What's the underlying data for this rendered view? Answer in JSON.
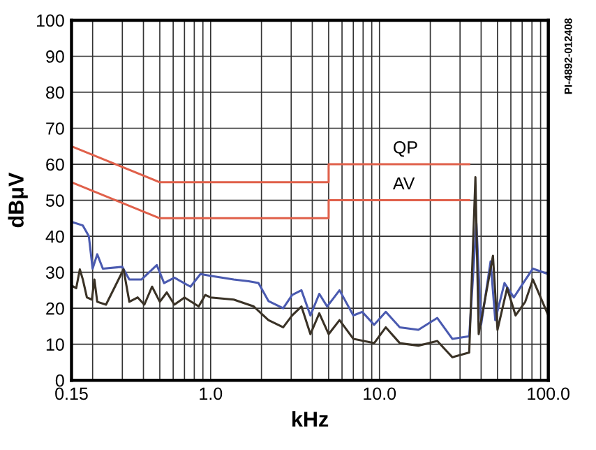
{
  "chart_data": {
    "type": "line",
    "xlabel": "kHz",
    "ylabel": "dBμV",
    "log": "x",
    "grid": true,
    "legend": false,
    "xlim": [
      0.15,
      100
    ],
    "xticks": [
      {
        "value": 0.15,
        "label": "0.15"
      },
      {
        "value": 1,
        "label": "1.0"
      },
      {
        "value": 10,
        "label": "10.0"
      },
      {
        "value": 100,
        "label": "100.0"
      }
    ],
    "ylim": [
      0,
      100
    ],
    "yticks": [
      0,
      10,
      20,
      30,
      40,
      50,
      60,
      70,
      80,
      90,
      100
    ],
    "annotations": [
      {
        "text": "QP",
        "x": 12,
        "y": 62
      },
      {
        "text": "AV",
        "x": 12,
        "y": 52
      },
      "PI-4892-012408"
    ],
    "series": [
      {
        "color": "#e0604a",
        "x": [
          0.15,
          0.5,
          5,
          5,
          34
        ],
        "values": [
          65,
          55,
          55,
          60,
          60
        ]
      },
      {
        "color": "#e0604a",
        "x": [
          0.15,
          0.5,
          5,
          5,
          34
        ],
        "values": [
          55,
          45,
          45,
          50,
          50
        ]
      },
      {
        "color": "#4a5ab0",
        "x": [
          0.15,
          0.175,
          0.19,
          0.2,
          0.213,
          0.23,
          0.3,
          0.33,
          0.39,
          0.48,
          0.53,
          0.61,
          0.76,
          0.87,
          1,
          1.37,
          1.68,
          1.92,
          2.2,
          2.69,
          3.04,
          3.45,
          3.9,
          4.4,
          4.9,
          5.8,
          7.0,
          7.9,
          9.3,
          10.9,
          13.2,
          17,
          22,
          27,
          34,
          37.5,
          40,
          45.5,
          48.5,
          55,
          62.5,
          71,
          81,
          100
        ],
        "values": [
          44,
          43,
          40,
          31,
          35,
          31,
          31.5,
          28,
          28,
          32,
          27,
          28.5,
          26,
          29.5,
          29,
          28,
          27.5,
          27,
          22,
          20,
          23.7,
          25,
          18,
          24,
          20.5,
          25,
          18,
          19,
          15.4,
          19,
          14.7,
          14,
          17.3,
          11.5,
          12.2,
          43.6,
          15.4,
          33,
          16.7,
          27,
          23,
          27,
          31,
          29.5
        ]
      },
      {
        "color": "#3a3226",
        "x": [
          0.15,
          0.16,
          0.168,
          0.175,
          0.185,
          0.198,
          0.205,
          0.213,
          0.24,
          0.305,
          0.33,
          0.37,
          0.405,
          0.45,
          0.5,
          0.55,
          0.61,
          0.7,
          0.85,
          0.93,
          1,
          1.37,
          1.8,
          2.2,
          2.69,
          3.04,
          3.45,
          3.9,
          4.4,
          5.0,
          5.8,
          7.0,
          9.3,
          10.9,
          13.2,
          17,
          22,
          27,
          34,
          37,
          38.7,
          47,
          50,
          57,
          64,
          73,
          81,
          100
        ],
        "values": [
          26.3,
          25.6,
          30.8,
          28,
          23,
          22.4,
          28,
          21.8,
          21,
          30.8,
          21.8,
          23,
          21,
          26,
          21.8,
          24.4,
          21,
          23,
          20.5,
          23.7,
          23,
          22.4,
          20.5,
          16.7,
          14.7,
          18,
          20.5,
          12.8,
          18.6,
          12.8,
          16.7,
          11.5,
          10.3,
          14.7,
          10.3,
          9.6,
          10.9,
          6.4,
          7.7,
          56.4,
          12.8,
          34.6,
          14,
          25.6,
          18,
          21.8,
          28,
          18
        ]
      }
    ]
  }
}
